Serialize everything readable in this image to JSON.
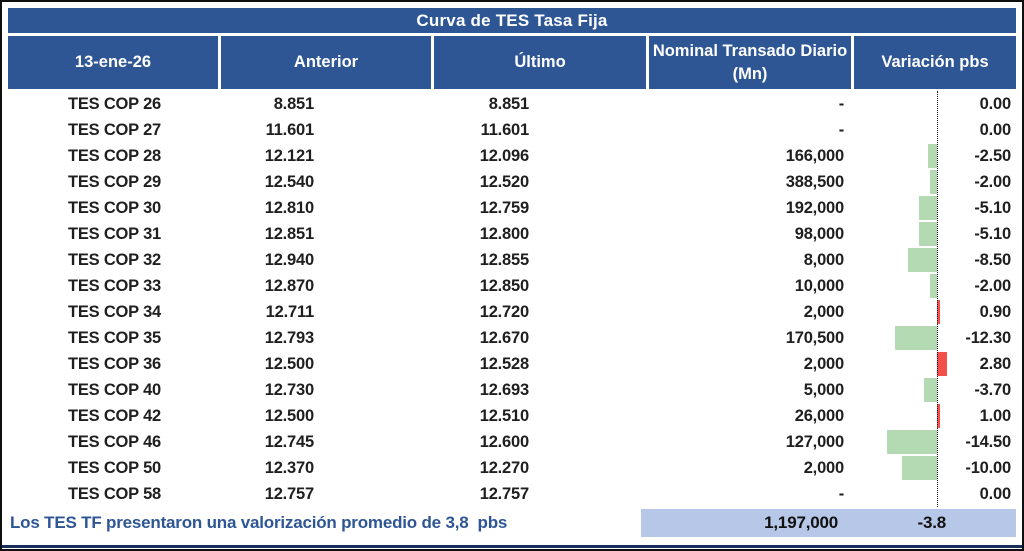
{
  "title": "Curva de TES Tasa Fija",
  "table": {
    "columns": [
      "13-ene-26",
      "Anterior",
      "Último",
      "Nominal Transado Diario (Mn)",
      "Variación pbs"
    ],
    "rows": [
      {
        "bond": "TES COP 26",
        "anterior": "8.851",
        "ultimo": "8.851",
        "nominal": "-",
        "variacion": "0.00",
        "variacion_value": 0
      },
      {
        "bond": "TES COP 27",
        "anterior": "11.601",
        "ultimo": "11.601",
        "nominal": "-",
        "variacion": "0.00",
        "variacion_value": 0
      },
      {
        "bond": "TES COP 28",
        "anterior": "12.121",
        "ultimo": "12.096",
        "nominal": "166,000",
        "variacion": "-2.50",
        "variacion_value": -2.5
      },
      {
        "bond": "TES COP 29",
        "anterior": "12.540",
        "ultimo": "12.520",
        "nominal": "388,500",
        "variacion": "-2.00",
        "variacion_value": -2.0
      },
      {
        "bond": "TES COP 30",
        "anterior": "12.810",
        "ultimo": "12.759",
        "nominal": "192,000",
        "variacion": "-5.10",
        "variacion_value": -5.1
      },
      {
        "bond": "TES COP 31",
        "anterior": "12.851",
        "ultimo": "12.800",
        "nominal": "98,000",
        "variacion": "-5.10",
        "variacion_value": -5.1
      },
      {
        "bond": "TES COP 32",
        "anterior": "12.940",
        "ultimo": "12.855",
        "nominal": "8,000",
        "variacion": "-8.50",
        "variacion_value": -8.5
      },
      {
        "bond": "TES COP 33",
        "anterior": "12.870",
        "ultimo": "12.850",
        "nominal": "10,000",
        "variacion": "-2.00",
        "variacion_value": -2.0
      },
      {
        "bond": "TES COP 34",
        "anterior": "12.711",
        "ultimo": "12.720",
        "nominal": "2,000",
        "variacion": "0.90",
        "variacion_value": 0.9
      },
      {
        "bond": "TES COP 35",
        "anterior": "12.793",
        "ultimo": "12.670",
        "nominal": "170,500",
        "variacion": "-12.30",
        "variacion_value": -12.3
      },
      {
        "bond": "TES COP 36",
        "anterior": "12.500",
        "ultimo": "12.528",
        "nominal": "2,000",
        "variacion": "2.80",
        "variacion_value": 2.8
      },
      {
        "bond": "TES COP 40",
        "anterior": "12.730",
        "ultimo": "12.693",
        "nominal": "5,000",
        "variacion": "-3.70",
        "variacion_value": -3.7
      },
      {
        "bond": "TES COP 42",
        "anterior": "12.500",
        "ultimo": "12.510",
        "nominal": "26,000",
        "variacion": "1.00",
        "variacion_value": 1.0
      },
      {
        "bond": "TES COP 46",
        "anterior": "12.745",
        "ultimo": "12.600",
        "nominal": "127,000",
        "variacion": "-14.50",
        "variacion_value": -14.5
      },
      {
        "bond": "TES COP 50",
        "anterior": "12.370",
        "ultimo": "12.270",
        "nominal": "2,000",
        "variacion": "-10.00",
        "variacion_value": -10.0
      },
      {
        "bond": "TES COP 58",
        "anterior": "12.757",
        "ultimo": "12.757",
        "nominal": "-",
        "variacion": "0.00",
        "variacion_value": 0
      }
    ]
  },
  "footer": {
    "note": "Los TES TF presentaron una valorización promedio de 3,8  pbs",
    "total_nominal": "1,197,000",
    "avg_variacion": "-3.8"
  },
  "colors": {
    "header_bg": "#2e5695",
    "negative_bar": "#b3dab3",
    "positive_bar": "#f2504b",
    "footer_highlight": "#b6c7e8",
    "footer_note_text": "#2e5695",
    "bottom_rule": "#15315b"
  },
  "chart_data": {
    "type": "table",
    "title": "Curva de TES Tasa Fija",
    "columns": [
      "13-ene-26",
      "Anterior",
      "Último",
      "Nominal Transado Diario (Mn)",
      "Variación pbs"
    ],
    "rows": [
      [
        "TES COP 26",
        8.851,
        8.851,
        null,
        0.0
      ],
      [
        "TES COP 27",
        11.601,
        11.601,
        null,
        0.0
      ],
      [
        "TES COP 28",
        12.121,
        12.096,
        166000,
        -2.5
      ],
      [
        "TES COP 29",
        12.54,
        12.52,
        388500,
        -2.0
      ],
      [
        "TES COP 30",
        12.81,
        12.759,
        192000,
        -5.1
      ],
      [
        "TES COP 31",
        12.851,
        12.8,
        98000,
        -5.1
      ],
      [
        "TES COP 32",
        12.94,
        12.855,
        8000,
        -8.5
      ],
      [
        "TES COP 33",
        12.87,
        12.85,
        10000,
        -2.0
      ],
      [
        "TES COP 34",
        12.711,
        12.72,
        2000,
        0.9
      ],
      [
        "TES COP 35",
        12.793,
        12.67,
        170500,
        -12.3
      ],
      [
        "TES COP 36",
        12.5,
        12.528,
        2000,
        2.8
      ],
      [
        "TES COP 40",
        12.73,
        12.693,
        5000,
        -3.7
      ],
      [
        "TES COP 42",
        12.5,
        12.51,
        26000,
        1.0
      ],
      [
        "TES COP 46",
        12.745,
        12.6,
        127000,
        -14.5
      ],
      [
        "TES COP 50",
        12.37,
        12.27,
        2000,
        -10.0
      ],
      [
        "TES COP 58",
        12.757,
        12.757,
        null,
        0.0
      ]
    ],
    "embedded_bar": {
      "type": "bar",
      "orientation": "horizontal",
      "column": "Variación pbs",
      "baseline": 0,
      "categories": [
        "TES COP 26",
        "TES COP 27",
        "TES COP 28",
        "TES COP 29",
        "TES COP 30",
        "TES COP 31",
        "TES COP 32",
        "TES COP 33",
        "TES COP 34",
        "TES COP 35",
        "TES COP 36",
        "TES COP 40",
        "TES COP 42",
        "TES COP 46",
        "TES COP 50",
        "TES COP 58"
      ],
      "values": [
        0.0,
        0.0,
        -2.5,
        -2.0,
        -5.1,
        -5.1,
        -8.5,
        -2.0,
        0.9,
        -12.3,
        2.8,
        -3.7,
        1.0,
        -14.5,
        -10.0,
        0.0
      ],
      "negative_color": "#b3dab3",
      "positive_color": "#f2504b"
    },
    "totals": {
      "nominal_total": 1197000,
      "avg_variacion_pbs": -3.8
    }
  }
}
